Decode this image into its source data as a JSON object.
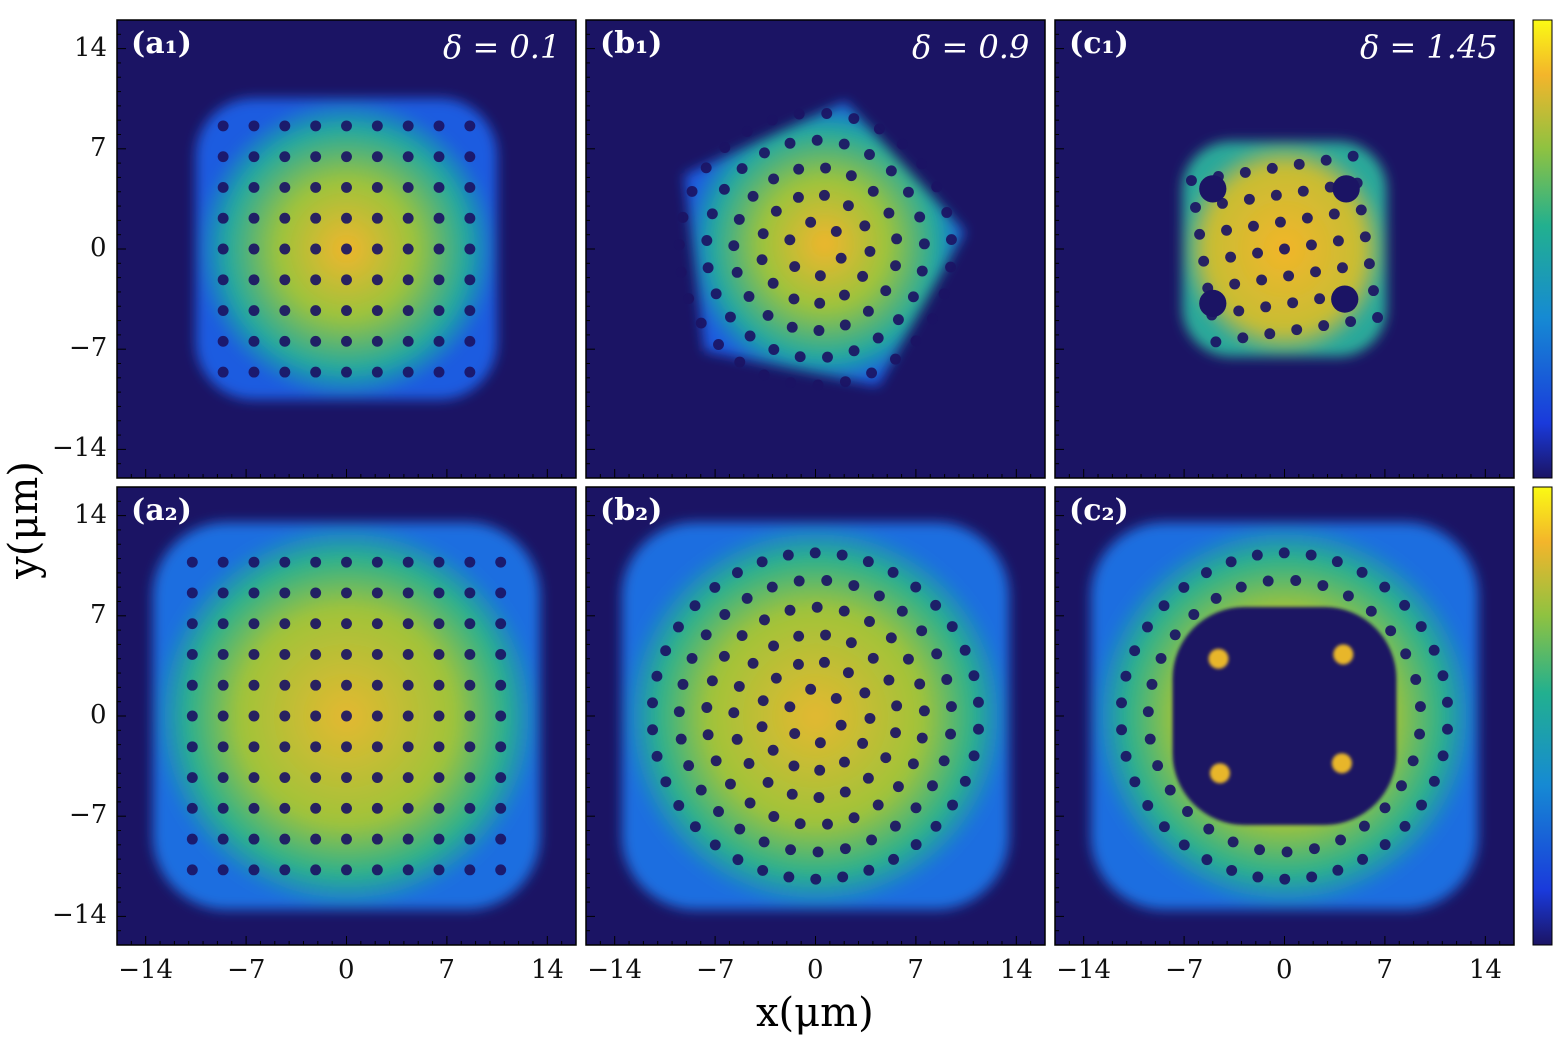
{
  "figure": {
    "xlabel": "x(μm)",
    "ylabel": "y(μm)",
    "ticks": [
      "−14",
      "−7",
      "0",
      "7",
      "14"
    ],
    "tick_values": [
      -14,
      -7,
      0,
      7,
      14
    ],
    "range": [
      -16,
      16
    ],
    "colormap": [
      "#1b1464",
      "#1a3adb",
      "#168ad3",
      "#22b08f",
      "#8fc241",
      "#f3b52b",
      "#fafa14"
    ],
    "background_color": "#1b1464"
  },
  "chart_data": [
    {
      "type": "heatmap",
      "label": "(a₁)",
      "delta_text": "δ = 0.1",
      "delta": 0.1,
      "component": 1,
      "shape": "square-lattice",
      "extent": 10.5,
      "max": 0.75
    },
    {
      "type": "heatmap",
      "label": "(b₁)",
      "delta_text": "δ = 0.9",
      "delta": 0.9,
      "component": 1,
      "shape": "pentagonal-lattice",
      "extent": 10,
      "max": 0.8
    },
    {
      "type": "heatmap",
      "label": "(c₁)",
      "delta_text": "δ = 1.45",
      "delta": 1.45,
      "component": 1,
      "shape": "compact-island",
      "extent": 7.5,
      "max": 0.85
    },
    {
      "type": "heatmap",
      "label": "(a₂)",
      "delta_text": "",
      "delta": 0.1,
      "component": 2,
      "shape": "square-lattice-ring",
      "extent": 13.5,
      "max": 0.75
    },
    {
      "type": "heatmap",
      "label": "(b₂)",
      "delta_text": "",
      "delta": 0.9,
      "component": 2,
      "shape": "quasicrystal-core",
      "extent": 13.5,
      "max": 0.8
    },
    {
      "type": "heatmap",
      "label": "(c₂)",
      "delta_text": "",
      "delta": 1.45,
      "component": 2,
      "shape": "hollow-ring",
      "extent": 13.5,
      "max": 0.75
    }
  ]
}
